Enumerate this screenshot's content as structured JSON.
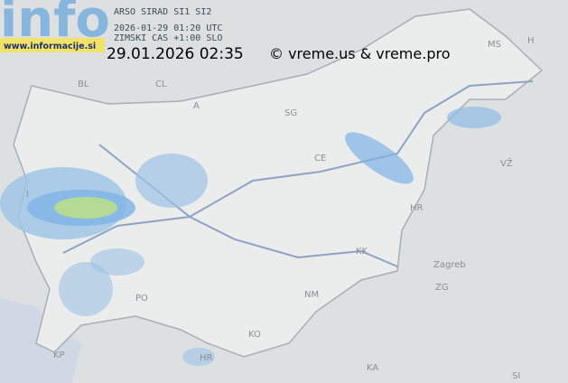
{
  "header": {
    "logo": "info",
    "website": "www.informacije.si",
    "source": "ARSO SIRAD SI1 SI2",
    "utc_time": "2026-01-29 01:20 UTC",
    "local_time": "ZIMSKI CAS +1:00 SLO",
    "date_time": "29.01.2026 02:35",
    "credit": "© vreme.us & vreme.pro"
  },
  "map": {
    "labels": [
      "BL",
      "CL",
      "A",
      "H",
      "MS",
      "SG",
      "CE",
      "I",
      "PO",
      "NM",
      "KK",
      "KO",
      "KP",
      "HR",
      "HR",
      "Zagreb",
      "ZG",
      "KA",
      "SI",
      "VŽ"
    ]
  }
}
